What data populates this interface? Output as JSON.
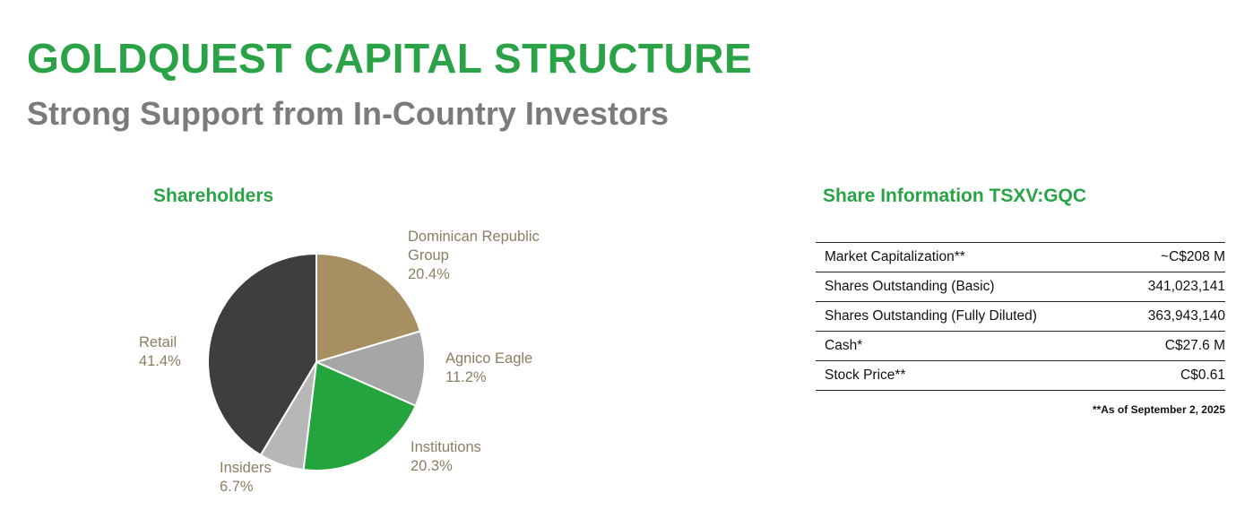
{
  "page": {
    "title": "GOLDQUEST CAPITAL STRUCTURE",
    "subtitle": "Strong Support from In-Country Investors"
  },
  "colors": {
    "accent-green": "#2aa346",
    "subtitle-gray": "#7b7b7b",
    "label-tan": "#8a7f63",
    "table-line": "#222222",
    "text-dark": "#111111"
  },
  "chart_data": {
    "type": "pie",
    "title": "Shareholders",
    "start_angle_deg": 0,
    "direction": "clockwise",
    "legend": "labels placed around slices",
    "slices": [
      {
        "label": "Dominican Republic Group",
        "pct_label": "20.4%",
        "value": 20.4,
        "color": "#a78f62"
      },
      {
        "label": "Agnico Eagle",
        "pct_label": "11.2%",
        "value": 11.2,
        "color": "#a6a6a6"
      },
      {
        "label": "Institutions",
        "pct_label": "20.3%",
        "value": 20.3,
        "color": "#23a43c"
      },
      {
        "label": "Insiders",
        "pct_label": "6.7%",
        "value": 6.7,
        "color": "#b7b7b7"
      },
      {
        "label": "Retail",
        "pct_label": "41.4%",
        "value": 41.4,
        "color": "#3e3e3e"
      }
    ]
  },
  "share_info": {
    "heading": "Share Information TSXV:GQC",
    "rows": [
      {
        "label": "Market Capitalization**",
        "value": "~C$208 M"
      },
      {
        "label": "Shares Outstanding (Basic)",
        "value": "341,023,141"
      },
      {
        "label": "Shares Outstanding (Fully Diluted)",
        "value": "363,943,140"
      },
      {
        "label": "Cash*",
        "value": "C$27.6 M"
      },
      {
        "label": "Stock Price**",
        "value": "C$0.61"
      }
    ],
    "footnote": "**As of September 2, 2025"
  }
}
